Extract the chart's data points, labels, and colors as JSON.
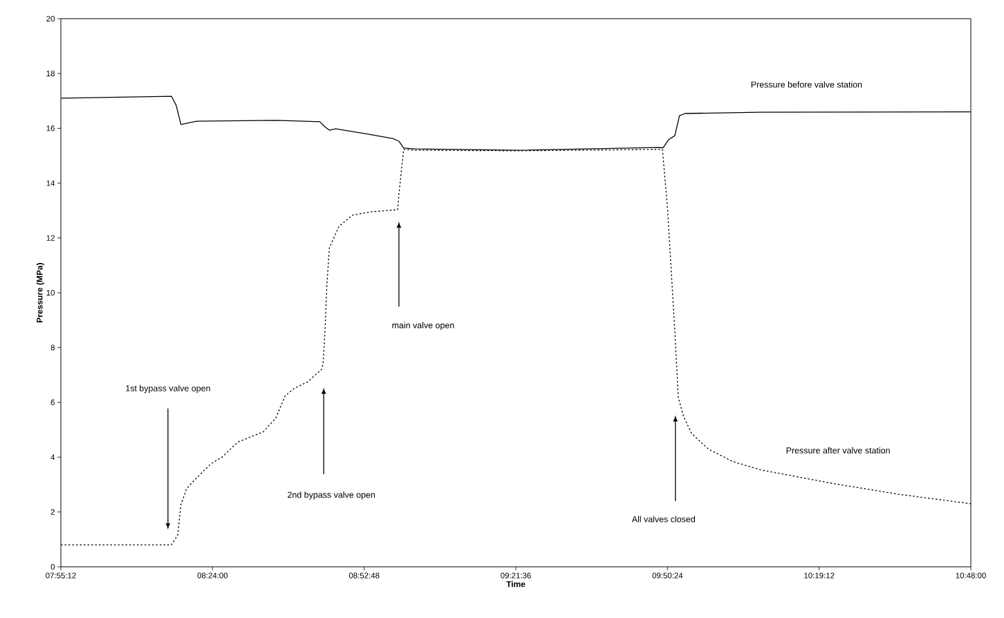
{
  "chart_data": {
    "type": "line",
    "xlabel": "Time",
    "ylabel": "Pressure (MPa)",
    "xlim": [
      7.92,
      10.8
    ],
    "xticks": [
      {
        "value": 7.92,
        "label": "07:55:12"
      },
      {
        "value": 8.4,
        "label": "08:24:00"
      },
      {
        "value": 8.88,
        "label": "08:52:48"
      },
      {
        "value": 9.36,
        "label": "09:21:36"
      },
      {
        "value": 9.84,
        "label": "09:50:24"
      },
      {
        "value": 10.32,
        "label": "10:19:12"
      },
      {
        "value": 10.8,
        "label": "10:48:00"
      }
    ],
    "ylim": [
      0,
      20
    ],
    "yticks": [
      0,
      2,
      4,
      6,
      8,
      10,
      12,
      14,
      16,
      18,
      20
    ],
    "grid": false,
    "legend": false,
    "marker": "none",
    "series": [
      {
        "name": "Pressure before valve station",
        "color": "#000000",
        "line_style": "solid",
        "x": [
          7.92,
          8.27,
          8.285,
          8.3,
          8.35,
          8.6,
          8.74,
          8.755,
          8.77,
          8.79,
          8.88,
          8.97,
          8.99,
          9.005,
          9.04,
          9.37,
          9.81,
          9.826,
          9.843,
          9.863,
          9.878,
          9.896,
          10.134,
          10.8
        ],
        "values": [
          17.1,
          17.17,
          16.84,
          16.14,
          16.26,
          16.29,
          16.24,
          16.06,
          15.93,
          15.98,
          15.81,
          15.63,
          15.53,
          15.28,
          15.25,
          15.2,
          15.3,
          15.29,
          15.58,
          15.73,
          16.46,
          16.54,
          16.59,
          16.6
        ]
      },
      {
        "name": "Pressure after valve station",
        "color": "#000000",
        "line_style": "dotted",
        "x": [
          7.92,
          8.27,
          8.29,
          8.3,
          8.318,
          8.34,
          8.395,
          8.43,
          8.48,
          8.56,
          8.6,
          8.63,
          8.66,
          8.7,
          8.745,
          8.75,
          8.756,
          8.762,
          8.77,
          8.8,
          8.843,
          8.9,
          8.986,
          8.99,
          9.005,
          9.04,
          9.37,
          9.824,
          9.84,
          9.863,
          9.874,
          9.891,
          9.916,
          9.97,
          10.047,
          10.134,
          10.353,
          10.57,
          10.8
        ],
        "values": [
          0.8,
          0.8,
          1.16,
          2.27,
          2.85,
          3.13,
          3.76,
          4.0,
          4.55,
          4.92,
          5.42,
          6.24,
          6.52,
          6.74,
          7.2,
          7.42,
          8.6,
          10.3,
          11.64,
          12.42,
          12.83,
          12.95,
          13.03,
          13.6,
          15.23,
          15.2,
          15.18,
          15.23,
          13.1,
          8.64,
          6.19,
          5.48,
          4.87,
          4.29,
          3.84,
          3.54,
          3.06,
          2.65,
          2.3
        ]
      }
    ],
    "annotations": [
      "1st bypass valve open",
      "2nd bypass valve open",
      "main valve open",
      "All valves closed"
    ]
  }
}
